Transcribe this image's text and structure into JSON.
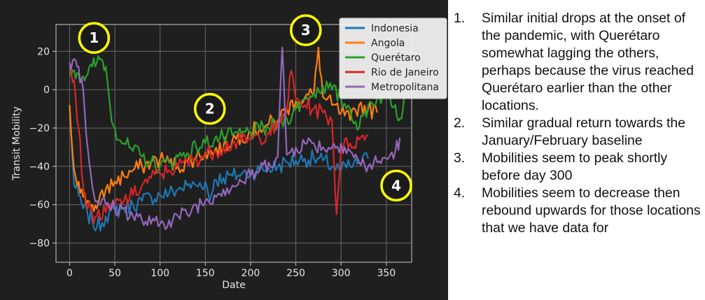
{
  "chart_data": {
    "type": "line",
    "xlabel": "Date",
    "ylabel": "Transit Mobility",
    "xlim": [
      -15,
      378
    ],
    "ylim": [
      -90,
      34
    ],
    "xticks": [
      0,
      50,
      100,
      150,
      200,
      250,
      300,
      350
    ],
    "yticks": [
      -80,
      -60,
      -40,
      -20,
      0,
      20
    ],
    "grid": true,
    "legend_position": "top-right",
    "series": [
      {
        "name": "Indonesia",
        "color": "#1f77b4",
        "points": [
          [
            0,
            -8
          ],
          [
            5,
            -50
          ],
          [
            10,
            -55
          ],
          [
            15,
            -62
          ],
          [
            20,
            -65
          ],
          [
            25,
            -68
          ],
          [
            30,
            -72
          ],
          [
            40,
            -66
          ],
          [
            50,
            -63
          ],
          [
            60,
            -62
          ],
          [
            70,
            -60
          ],
          [
            80,
            -58
          ],
          [
            90,
            -56
          ],
          [
            100,
            -55
          ],
          [
            110,
            -54
          ],
          [
            120,
            -52
          ],
          [
            130,
            -50
          ],
          [
            140,
            -50
          ],
          [
            150,
            -48
          ],
          [
            155,
            -58
          ],
          [
            160,
            -47
          ],
          [
            170,
            -46
          ],
          [
            180,
            -45
          ],
          [
            190,
            -44
          ],
          [
            200,
            -43
          ],
          [
            210,
            -42
          ],
          [
            220,
            -41
          ],
          [
            230,
            -40
          ],
          [
            240,
            -38
          ],
          [
            250,
            -37
          ],
          [
            260,
            -36
          ],
          [
            270,
            -36
          ],
          [
            280,
            -37
          ],
          [
            290,
            -40
          ],
          [
            300,
            -42
          ],
          [
            310,
            -40
          ],
          [
            320,
            -38
          ],
          [
            330,
            -36
          ]
        ]
      },
      {
        "name": "Angola",
        "color": "#ff7f0e",
        "points": [
          [
            0,
            -8
          ],
          [
            5,
            -42
          ],
          [
            10,
            -48
          ],
          [
            15,
            -56
          ],
          [
            20,
            -58
          ],
          [
            25,
            -60
          ],
          [
            30,
            -62
          ],
          [
            40,
            -52
          ],
          [
            50,
            -48
          ],
          [
            60,
            -45
          ],
          [
            70,
            -42
          ],
          [
            80,
            -40
          ],
          [
            90,
            -38
          ],
          [
            100,
            -36
          ],
          [
            110,
            -38
          ],
          [
            120,
            -40
          ],
          [
            130,
            -38
          ],
          [
            140,
            -35
          ],
          [
            150,
            -33
          ],
          [
            160,
            -32
          ],
          [
            170,
            -30
          ],
          [
            180,
            -26
          ],
          [
            190,
            -24
          ],
          [
            200,
            -22
          ],
          [
            210,
            -20
          ],
          [
            220,
            -18
          ],
          [
            230,
            -16
          ],
          [
            240,
            -10
          ],
          [
            250,
            -6
          ],
          [
            260,
            -4
          ],
          [
            270,
            -2
          ],
          [
            275,
            22
          ],
          [
            280,
            -4
          ],
          [
            290,
            -8
          ],
          [
            300,
            -12
          ],
          [
            310,
            -16
          ],
          [
            320,
            -8
          ],
          [
            330,
            -10
          ],
          [
            340,
            -12
          ]
        ]
      },
      {
        "name": "Querétaro",
        "color": "#2ca02c",
        "points": [
          [
            0,
            12
          ],
          [
            5,
            10
          ],
          [
            10,
            8
          ],
          [
            15,
            7
          ],
          [
            20,
            8
          ],
          [
            25,
            12
          ],
          [
            30,
            14
          ],
          [
            35,
            16
          ],
          [
            40,
            12
          ],
          [
            45,
            -10
          ],
          [
            50,
            -20
          ],
          [
            60,
            -28
          ],
          [
            70,
            -32
          ],
          [
            80,
            -35
          ],
          [
            90,
            -38
          ],
          [
            100,
            -40
          ],
          [
            110,
            -38
          ],
          [
            120,
            -35
          ],
          [
            130,
            -33
          ],
          [
            140,
            -30
          ],
          [
            150,
            -28
          ],
          [
            160,
            -26
          ],
          [
            170,
            -25
          ],
          [
            180,
            -24
          ],
          [
            190,
            -23
          ],
          [
            200,
            -22
          ],
          [
            210,
            -21
          ],
          [
            220,
            -20
          ],
          [
            230,
            -18
          ],
          [
            240,
            -15
          ],
          [
            250,
            -10
          ],
          [
            260,
            -5
          ],
          [
            270,
            -2
          ],
          [
            280,
            2
          ],
          [
            290,
            0
          ],
          [
            300,
            -5
          ],
          [
            310,
            -10
          ],
          [
            320,
            -20
          ],
          [
            330,
            -8
          ],
          [
            340,
            -4
          ],
          [
            350,
            -2
          ],
          [
            360,
            -8
          ],
          [
            365,
            -15
          ],
          [
            370,
            -2
          ]
        ]
      },
      {
        "name": "Rio de Janeiro",
        "color": "#d62728",
        "points": [
          [
            0,
            12
          ],
          [
            5,
            5
          ],
          [
            10,
            -20
          ],
          [
            15,
            -50
          ],
          [
            20,
            -62
          ],
          [
            25,
            -65
          ],
          [
            30,
            -66
          ],
          [
            40,
            -64
          ],
          [
            50,
            -60
          ],
          [
            60,
            -58
          ],
          [
            70,
            -55
          ],
          [
            80,
            -50
          ],
          [
            90,
            -46
          ],
          [
            100,
            -44
          ],
          [
            110,
            -42
          ],
          [
            120,
            -40
          ],
          [
            130,
            -38
          ],
          [
            140,
            -36
          ],
          [
            150,
            -34
          ],
          [
            160,
            -32
          ],
          [
            170,
            -30
          ],
          [
            180,
            -28
          ],
          [
            190,
            -27
          ],
          [
            200,
            -26
          ],
          [
            210,
            -25
          ],
          [
            220,
            -22
          ],
          [
            230,
            -20
          ],
          [
            240,
            -10
          ],
          [
            245,
            10
          ],
          [
            250,
            -5
          ],
          [
            260,
            -8
          ],
          [
            270,
            -10
          ],
          [
            280,
            -12
          ],
          [
            290,
            -16
          ],
          [
            295,
            -65
          ],
          [
            300,
            -30
          ],
          [
            310,
            -28
          ],
          [
            320,
            -26
          ],
          [
            330,
            -24
          ]
        ]
      },
      {
        "name": "Metropolitana",
        "color": "#9467bd",
        "points": [
          [
            0,
            14
          ],
          [
            5,
            16
          ],
          [
            10,
            12
          ],
          [
            15,
            0
          ],
          [
            20,
            -30
          ],
          [
            25,
            -50
          ],
          [
            30,
            -58
          ],
          [
            40,
            -60
          ],
          [
            50,
            -62
          ],
          [
            60,
            -62
          ],
          [
            70,
            -66
          ],
          [
            80,
            -68
          ],
          [
            90,
            -70
          ],
          [
            100,
            -70
          ],
          [
            110,
            -68
          ],
          [
            120,
            -66
          ],
          [
            130,
            -65
          ],
          [
            140,
            -60
          ],
          [
            150,
            -58
          ],
          [
            160,
            -55
          ],
          [
            170,
            -52
          ],
          [
            180,
            -50
          ],
          [
            190,
            -48
          ],
          [
            200,
            -45
          ],
          [
            210,
            -42
          ],
          [
            220,
            -38
          ],
          [
            230,
            -35
          ],
          [
            235,
            22
          ],
          [
            240,
            -34
          ],
          [
            250,
            -30
          ],
          [
            260,
            -28
          ],
          [
            270,
            -28
          ],
          [
            280,
            -30
          ],
          [
            290,
            -30
          ],
          [
            300,
            -28
          ],
          [
            310,
            -32
          ],
          [
            320,
            -38
          ],
          [
            330,
            -40
          ],
          [
            340,
            -38
          ],
          [
            350,
            -36
          ],
          [
            360,
            -32
          ],
          [
            365,
            -25
          ]
        ]
      }
    ],
    "annotations": [
      {
        "label": "1",
        "x": 27,
        "y": 27
      },
      {
        "label": "2",
        "x": 155,
        "y": -10
      },
      {
        "label": "3",
        "x": 261,
        "y": 31
      },
      {
        "label": "4",
        "x": 361,
        "y": -50
      }
    ]
  },
  "notes": [
    {
      "num": "1.",
      "text": "Similar initial drops at the onset of the pandemic, with Querétaro somewhat lagging the others, perhaps because the virus reached Querétaro earlier than the other locations."
    },
    {
      "num": "2.",
      "text": "Similar gradual return towards the January/February baseline"
    },
    {
      "num": "3.",
      "text": "Mobilities seem to peak shortly before day 300"
    },
    {
      "num": "4.",
      "text": "Mobilities seem to decrease then rebound upwards for those locations that we have data for"
    }
  ]
}
